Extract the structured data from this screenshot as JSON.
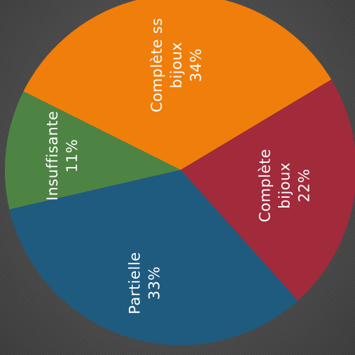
{
  "chart_data": {
    "type": "pie",
    "title": "",
    "legend": "none",
    "slices": [
      {
        "label": "Complète bijoux",
        "value": 22,
        "display": "22%",
        "lines": [
          "Complète",
          "bijoux",
          "22%"
        ],
        "color": "#a12a3b"
      },
      {
        "label": "Partielle",
        "value": 33,
        "display": "33%",
        "lines": [
          "Partielle",
          "33%"
        ],
        "color": "#1f5b7f"
      },
      {
        "label": "Insuffisante",
        "value": 11,
        "display": "11%",
        "lines": [
          "Insuffisante",
          "11%"
        ],
        "color": "#4e8443"
      },
      {
        "label": "Complète ss bijoux",
        "value": 34,
        "display": "34%",
        "lines": [
          "Complète ss",
          "bijoux",
          "34%"
        ],
        "color": "#ef7e0b"
      }
    ]
  }
}
